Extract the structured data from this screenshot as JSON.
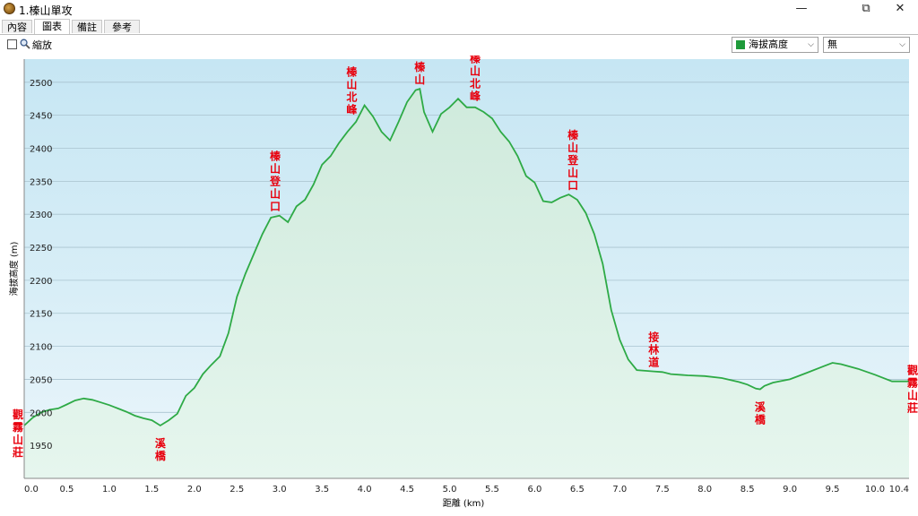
{
  "window": {
    "title": "1.榛山單攻",
    "restore_glyph": "⧉",
    "close_glyph": "✕",
    "minimize_glyph": "—"
  },
  "tabs": [
    {
      "label": "內容"
    },
    {
      "label": "圖表"
    },
    {
      "label": "備註"
    },
    {
      "label": "參考"
    }
  ],
  "active_tab": 1,
  "toolbar": {
    "zoom_label": "縮放",
    "series_select": "海拔高度",
    "secondary_select": "無"
  },
  "colors": {
    "line": "#2eaa46",
    "accent": "#1e8c2e",
    "label_red": "#e8000d"
  },
  "chart_data": {
    "type": "area",
    "xlabel": "距離   (km)",
    "ylabel": "海拔高度 (m)",
    "xlim": [
      0,
      10.4
    ],
    "ylim": [
      1900,
      2535
    ],
    "grid": true,
    "x_ticks": [
      "0.0",
      "0.5",
      "1.0",
      "1.5",
      "2.0",
      "2.5",
      "3.0",
      "3.5",
      "4.0",
      "4.5",
      "5.0",
      "5.5",
      "6.0",
      "6.5",
      "7.0",
      "7.5",
      "8.0",
      "8.5",
      "9.0",
      "9.5",
      "10.0",
      "10.4"
    ],
    "y_ticks": [
      "1950",
      "2000",
      "2050",
      "2100",
      "2150",
      "2200",
      "2250",
      "2300",
      "2350",
      "2400",
      "2450",
      "2500"
    ],
    "series": [
      {
        "x": [
          0.0,
          0.1,
          0.2,
          0.3,
          0.4,
          0.5,
          0.6,
          0.7,
          0.8,
          0.9,
          1.0,
          1.1,
          1.2,
          1.3,
          1.4,
          1.5,
          1.6,
          1.7,
          1.8,
          1.9,
          2.0,
          2.1,
          2.2,
          2.3,
          2.4,
          2.5,
          2.6,
          2.7,
          2.8,
          2.9,
          3.0,
          3.1,
          3.2,
          3.3,
          3.4,
          3.5,
          3.6,
          3.7,
          3.8,
          3.9,
          4.0,
          4.1,
          4.2,
          4.3,
          4.4,
          4.5,
          4.6,
          4.65,
          4.7,
          4.8,
          4.9,
          5.0,
          5.1,
          5.2,
          5.3,
          5.4,
          5.5,
          5.6,
          5.7,
          5.8,
          5.9,
          6.0,
          6.1,
          6.2,
          6.3,
          6.4,
          6.5,
          6.6,
          6.7,
          6.8,
          6.9,
          7.0,
          7.1,
          7.2,
          7.3,
          7.4,
          7.5,
          7.6,
          7.8,
          8.0,
          8.2,
          8.4,
          8.5,
          8.6,
          8.65,
          8.7,
          8.8,
          9.0,
          9.2,
          9.4,
          9.5,
          9.6,
          9.8,
          10.0,
          10.2,
          10.4
        ],
        "y": [
          1980,
          1992,
          2000,
          2004,
          2006,
          2012,
          2018,
          2021,
          2019,
          2015,
          2011,
          2006,
          2001,
          1995,
          1991,
          1988,
          1980,
          1988,
          1998,
          2025,
          2037,
          2058,
          2072,
          2085,
          2120,
          2175,
          2210,
          2240,
          2270,
          2295,
          2298,
          2288,
          2312,
          2322,
          2345,
          2375,
          2388,
          2408,
          2425,
          2440,
          2465,
          2448,
          2425,
          2412,
          2440,
          2470,
          2488,
          2490,
          2455,
          2425,
          2452,
          2462,
          2475,
          2462,
          2462,
          2455,
          2445,
          2425,
          2410,
          2388,
          2358,
          2348,
          2320,
          2318,
          2325,
          2330,
          2322,
          2302,
          2270,
          2225,
          2155,
          2110,
          2080,
          2064,
          2063,
          2062,
          2061,
          2058,
          2056,
          2055,
          2052,
          2046,
          2042,
          2036,
          2035,
          2040,
          2045,
          2050,
          2060,
          2070,
          2075,
          2073,
          2066,
          2057,
          2047,
          2047
        ]
      }
    ],
    "annotations": [
      {
        "text": "觀霧山莊",
        "x": 0.0,
        "y": 1980
      },
      {
        "text": "溪橋",
        "x": 1.6,
        "y": 1980
      },
      {
        "text": "榛山登山口",
        "x": 2.95,
        "y": 2298
      },
      {
        "text": "榛山北峰",
        "x": 3.85,
        "y": 2445
      },
      {
        "text": "榛山",
        "x": 4.65,
        "y": 2490
      },
      {
        "text": "榛山北峰",
        "x": 5.3,
        "y": 2465
      },
      {
        "text": "榛山登山口",
        "x": 6.45,
        "y": 2330
      },
      {
        "text": "接林道",
        "x": 7.4,
        "y": 2062
      },
      {
        "text": "溪橋",
        "x": 8.65,
        "y": 2035
      },
      {
        "text": "觀霧山莊",
        "x": 10.4,
        "y": 2047
      }
    ]
  }
}
